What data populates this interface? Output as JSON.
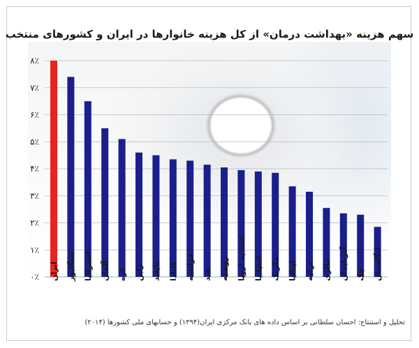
{
  "chart_data": {
    "type": "bar",
    "title": "سهم هزینه «بهداشت درمان» از کل هزینه خانوارها در ایران و کشورهای منتخب",
    "y_tick_labels": [
      "۰٪",
      "۱٪",
      "۲٪",
      "۳٪",
      "۴٪",
      "۵٪",
      "۶٪",
      "۷٪",
      "۸٪"
    ],
    "ylim": [
      0,
      8
    ],
    "grid": true,
    "categories": [
      "ایران",
      "سنگاپور",
      "استرالیا",
      "آلمان",
      "کره",
      "ژاپن",
      "تایلند",
      "کانادا",
      "فرانسه",
      "هند",
      "روسیه",
      "اتحادیه اروپا",
      "اسپانیا",
      "مکزیک",
      "ایتالیا",
      "ترکیه",
      "مالزی",
      "آذربایجان",
      "چک",
      "انگلستان"
    ],
    "values": [
      8.0,
      7.4,
      6.5,
      5.5,
      5.1,
      4.6,
      4.5,
      4.35,
      4.3,
      4.15,
      4.05,
      3.95,
      3.9,
      3.85,
      3.35,
      3.15,
      2.55,
      2.35,
      2.3,
      1.85
    ],
    "highlight_index": 0
  },
  "colors": {
    "highlight": "#e8241c",
    "bar": "#1a1f8c",
    "grid": "#b9b9b9"
  },
  "source": "تحلیل و استنتاج: احسان سلطانی بر اساس داده های بانک مرکزی ایران(۱۳۹۴) و حسابهای ملی کشورها (۲۰۱۴)"
}
